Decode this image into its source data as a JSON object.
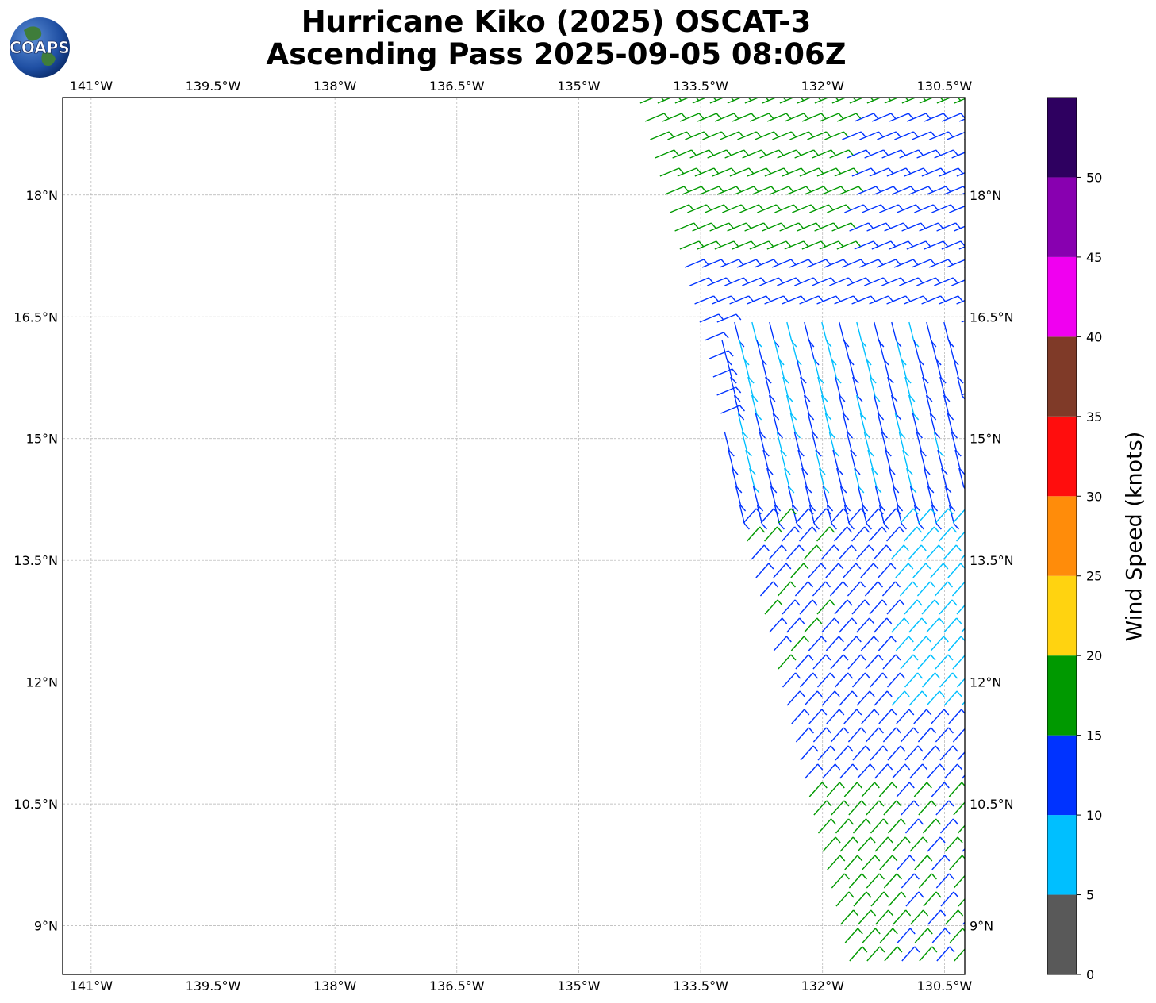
{
  "title_line1": "Hurricane Kiko (2025) OSCAT-3",
  "title_line2": "Ascending Pass 2025-09-05 08:06Z",
  "logo_text": "COAPS",
  "lon_ticks": [
    "141°W",
    "139.5°W",
    "138°W",
    "136.5°W",
    "135°W",
    "133.5°W",
    "132°W",
    "130.5°W"
  ],
  "lon_tick_values": [
    -141,
    -139.5,
    -138,
    -136.5,
    -135,
    -133.5,
    -132,
    -130.5
  ],
  "lat_ticks": [
    "18°N",
    "16.5°N",
    "15°N",
    "13.5°N",
    "12°N",
    "10.5°N",
    "9°N"
  ],
  "lat_tick_values": [
    18,
    16.5,
    15,
    13.5,
    12,
    10.5,
    9
  ],
  "extent": {
    "lon_min": -141.35,
    "lon_max": -130.25,
    "lat_min": 8.4,
    "lat_max": 19.2
  },
  "colorbar": {
    "label": "Wind Speed (knots)",
    "ticks": [
      "0",
      "5",
      "10",
      "15",
      "20",
      "25",
      "30",
      "35",
      "40",
      "45",
      "50"
    ],
    "bounds": [
      0,
      5,
      10,
      15,
      20,
      25,
      30,
      35,
      40,
      45,
      50,
      55
    ],
    "colors": [
      "#595959",
      "#00bfff",
      "#0033ff",
      "#009900",
      "#ffd310",
      "#ff8c0a",
      "#ff0d0d",
      "#7f3a28",
      "#f000f0",
      "#8800b0",
      "#2e0060"
    ]
  },
  "colors": {
    "grid": "#b0b0b0",
    "axis": "#000000"
  }
}
